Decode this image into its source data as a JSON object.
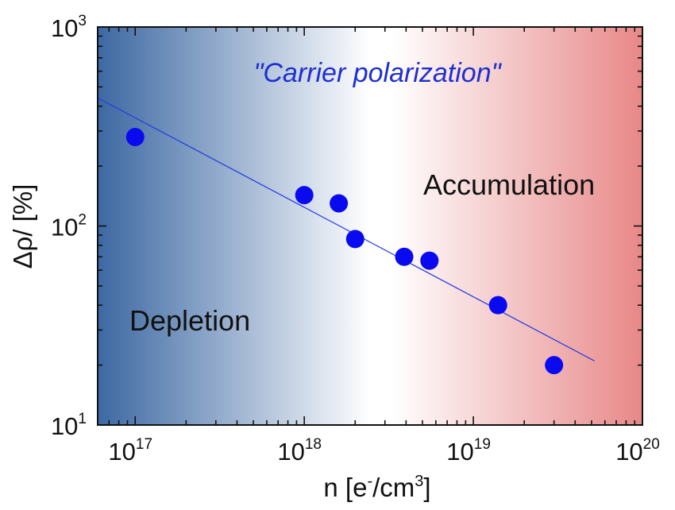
{
  "chart_data": {
    "type": "scatter",
    "x_scale": "log",
    "y_scale": "log",
    "xlim": [
      6e+16,
      1e+20
    ],
    "ylim": [
      10,
      1000
    ],
    "x_ticks": [
      {
        "base": "10",
        "exp": "17",
        "value": 1e+17
      },
      {
        "base": "10",
        "exp": "18",
        "value": 1e+18
      },
      {
        "base": "10",
        "exp": "19",
        "value": 1e+19
      },
      {
        "base": "10",
        "exp": "20",
        "value": 1e+20
      }
    ],
    "y_ticks": [
      {
        "base": "10",
        "exp": "1",
        "value": 10
      },
      {
        "base": "10",
        "exp": "2",
        "value": 100
      },
      {
        "base": "10",
        "exp": "3",
        "value": 1000
      }
    ],
    "xlabel": {
      "main": "n [e",
      "sup1": "-",
      "mid": "/cm",
      "sup2": "3",
      "tail": "]"
    },
    "ylabel": "Δρ/  [%]",
    "series": [
      {
        "kind": "points",
        "x": [
          1e+17,
          1e+18,
          1.6e+18,
          2e+18,
          3.9e+18,
          5.5e+18,
          1.4e+19,
          3e+19
        ],
        "y": [
          280,
          143,
          130,
          86,
          70,
          67,
          40,
          20
        ]
      },
      {
        "kind": "fit_line",
        "x": [
          6e+16,
          5.2e+19
        ],
        "y": [
          440,
          21
        ]
      }
    ],
    "annotations": {
      "title": "\"Carrier polarization\"",
      "left_region": "Depletion",
      "right_region": "Accumulation"
    },
    "colors": {
      "points": "#0a0af0",
      "fit_line": "#2b3fe0",
      "annotation": "#1f2fd0",
      "gradient_left": "#3c68a2",
      "gradient_mid": "#ffffff",
      "gradient_right": "#e88888"
    },
    "grid": false
  }
}
